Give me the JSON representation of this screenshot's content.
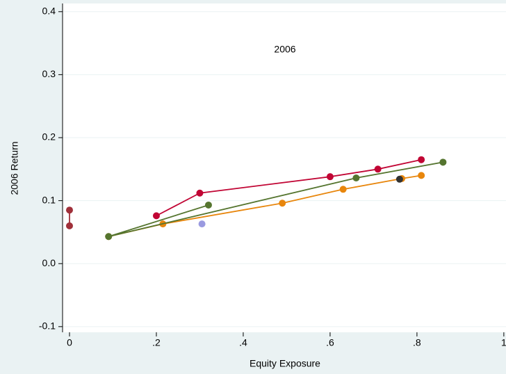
{
  "chart_data": {
    "type": "line",
    "annotation": "2006",
    "y_label": "2006 Return",
    "x_label": "Equity Exposure",
    "xlim": [
      -0.016,
      1.005
    ],
    "ylim": [
      -0.109,
      0.413
    ],
    "xticks": [
      0,
      {
        "value": 0.2,
        "label": ".2"
      },
      {
        "value": 0.4,
        "label": ".4"
      },
      {
        "value": 0.6,
        "label": ".6"
      },
      {
        "value": 0.8,
        "label": ".8"
      },
      1
    ],
    "yticks": [
      {
        "value": -0.1,
        "label": "-0.1"
      },
      {
        "value": 0,
        "label": "0.0"
      },
      0.1,
      0.2,
      0.3,
      0.4
    ],
    "grid": true,
    "series": [
      {
        "color": "#a0303a",
        "x": [
          0,
          0
        ],
        "values": [
          0.085,
          0.06
        ]
      },
      {
        "color": "#e8860c",
        "x": [
          0.09,
          0.215,
          0.49,
          0.63,
          0.765,
          0.81
        ],
        "values": [
          0.043,
          0.063,
          0.096,
          0.118,
          0.135,
          0.14
        ]
      },
      {
        "color": "#c10534",
        "x": [
          0.2,
          0.3,
          0.6,
          0.71,
          0.81
        ],
        "values": [
          0.076,
          0.112,
          0.138,
          0.15,
          0.165
        ]
      },
      {
        "color": "#55752f",
        "x": [
          0.32,
          0.09,
          0.66,
          0.86
        ],
        "values": [
          0.093,
          0.043,
          0.136,
          0.161
        ]
      },
      {
        "color": "#333333",
        "x": [
          0.76
        ],
        "values": [
          0.134
        ]
      },
      {
        "color": "#9a9ae0",
        "x": [
          0.305
        ],
        "values": [
          0.063
        ]
      }
    ]
  }
}
